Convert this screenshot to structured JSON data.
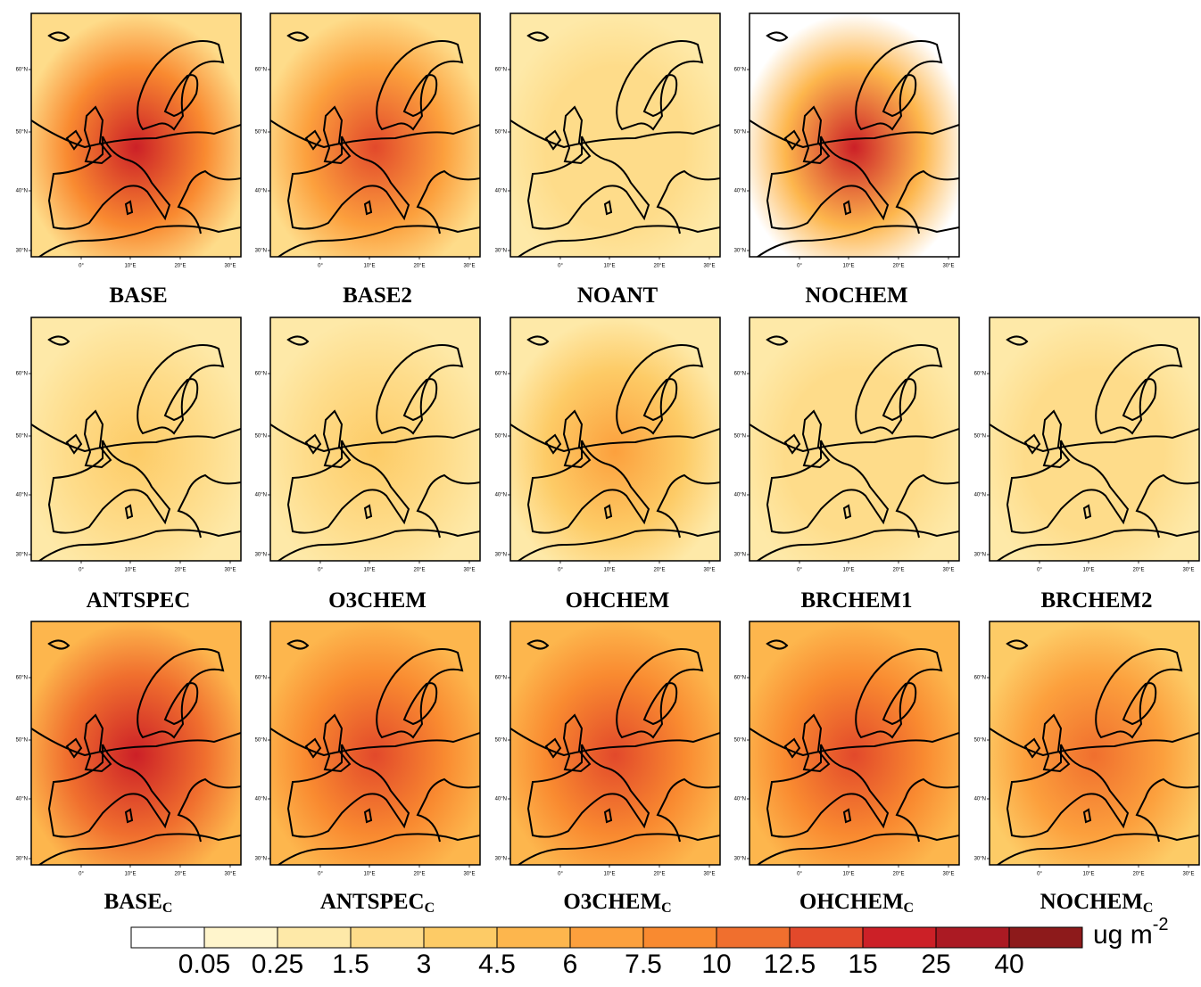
{
  "panels": [
    [
      {
        "label": "BASE"
      },
      {
        "label": "BASE2"
      },
      {
        "label": "NOANT"
      },
      {
        "label": "NOCHEM"
      }
    ],
    [
      {
        "label": "ANTSPEC"
      },
      {
        "label": "O3CHEM"
      },
      {
        "label": "OHCHEM"
      },
      {
        "label": "BRCHEM1"
      },
      {
        "label": "BRCHEM2"
      }
    ],
    [
      {
        "label": "BASE",
        "subscript": "C"
      },
      {
        "label": "ANTSPEC",
        "subscript": "C"
      },
      {
        "label": "O3CHEM",
        "subscript": "C"
      },
      {
        "label": "OHCHEM",
        "subscript": "C"
      },
      {
        "label": "NOCHEM",
        "subscript": "C"
      }
    ]
  ],
  "lat_ticks": [
    "30°N",
    "40°N",
    "50°N",
    "60°N"
  ],
  "lon_ticks": [
    "0°",
    "10°E",
    "20°E",
    "30°E"
  ],
  "colorbar": {
    "ticks": [
      0.05,
      0.25,
      1.5,
      3,
      4.5,
      6,
      7.5,
      10,
      12.5,
      15,
      25,
      40
    ],
    "colors": [
      "#ffffff",
      "#fff5cc",
      "#fee9a8",
      "#fedc8a",
      "#fdcb66",
      "#fdb64d",
      "#fca03d",
      "#f98a30",
      "#f06f2e",
      "#e2492b",
      "#cc2027",
      "#ab1a23",
      "#8d1a1b"
    ],
    "unit": "ug m",
    "unit_sup": "-2"
  }
}
